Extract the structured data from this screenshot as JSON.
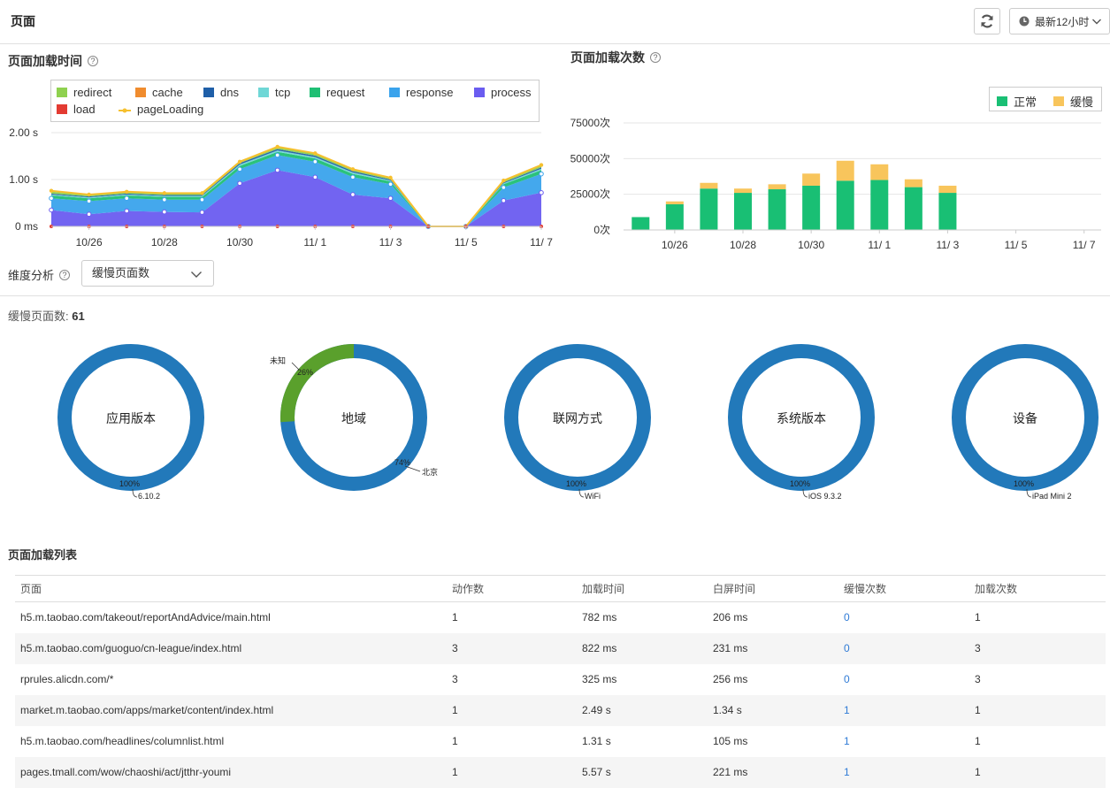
{
  "header": {
    "title": "页面",
    "time_range": "最新12小时"
  },
  "load_time": {
    "title": "页面加载时间",
    "legend": [
      {
        "name": "redirect",
        "color": "#8fd14f"
      },
      {
        "name": "cache",
        "color": "#f08c2e"
      },
      {
        "name": "dns",
        "color": "#1f5fa8"
      },
      {
        "name": "tcp",
        "color": "#6fd7d6"
      },
      {
        "name": "request",
        "color": "#1fbf74"
      },
      {
        "name": "response",
        "color": "#3aa3ec"
      },
      {
        "name": "process",
        "color": "#6a5cf0"
      },
      {
        "name": "load",
        "color": "#e33b32"
      },
      {
        "name": "pageLoading",
        "color": "#f6c02e"
      }
    ]
  },
  "load_count": {
    "title": "页面加载次数",
    "legend": [
      {
        "name": "正常",
        "color": "#19bf74"
      },
      {
        "name": "缓慢",
        "color": "#f8c55c"
      }
    ]
  },
  "dimension": {
    "label": "维度分析",
    "selected": "缓慢页面数"
  },
  "slow_pages": {
    "label": "缓慢页面数:",
    "count": "61"
  },
  "donuts": [
    {
      "center": "应用版本",
      "pct": "100%",
      "label": "6.10.2"
    },
    {
      "center": "地域",
      "pct": "74%",
      "label": "北京",
      "pct2": "26%",
      "label2": "未知"
    },
    {
      "center": "联网方式",
      "pct": "100%",
      "label": "WiFi"
    },
    {
      "center": "系统版本",
      "pct": "100%",
      "label": "iOS 9.3.2"
    },
    {
      "center": "设备",
      "pct": "100%",
      "label": "iPad Mini 2"
    }
  ],
  "page_list": {
    "title": "页面加载列表",
    "columns": [
      "页面",
      "动作数",
      "加载时间",
      "白屏时间",
      "缓慢次数",
      "加载次数"
    ],
    "rows": [
      [
        "h5.m.taobao.com/takeout/reportAndAdvice/main.html",
        "1",
        "782 ms",
        "206 ms",
        "0",
        "1"
      ],
      [
        "h5.m.taobao.com/guoguo/cn-league/index.html",
        "3",
        "822 ms",
        "231 ms",
        "0",
        "3"
      ],
      [
        "rprules.alicdn.com/*",
        "3",
        "325 ms",
        "256 ms",
        "0",
        "3"
      ],
      [
        "market.m.taobao.com/apps/market/content/index.html",
        "1",
        "2.49 s",
        "1.34 s",
        "1",
        "1"
      ],
      [
        "h5.m.taobao.com/headlines/columnlist.html",
        "1",
        "1.31 s",
        "105 ms",
        "1",
        "1"
      ],
      [
        "pages.tmall.com/wow/chaoshi/act/jtthr-youmi",
        "1",
        "5.57 s",
        "221 ms",
        "1",
        "1"
      ]
    ]
  },
  "chart_data": [
    {
      "type": "area",
      "title": "页面加载时间",
      "x": [
        "10/25",
        "10/26",
        "10/27",
        "10/28",
        "10/29",
        "10/30",
        "10/31",
        "11/ 1",
        "11/ 2",
        "11/ 3",
        "11/ 4",
        "11/ 5",
        "11/ 6",
        "11/ 7"
      ],
      "x_tick_labels": [
        "10/26",
        "10/28",
        "10/30",
        "11/ 1",
        "11/ 3",
        "11/ 5",
        "11/ 7"
      ],
      "y_tick_labels": [
        "2.00 s",
        "1.00 s",
        "0 ms"
      ],
      "ylim": [
        0,
        2.0
      ],
      "unit": "s",
      "series": [
        {
          "name": "process",
          "values": [
            0.35,
            0.26,
            0.33,
            0.31,
            0.3,
            0.92,
            1.2,
            1.05,
            0.68,
            0.6,
            0.0,
            0.0,
            0.55,
            0.72
          ]
        },
        {
          "name": "response",
          "values": [
            0.25,
            0.28,
            0.27,
            0.26,
            0.27,
            0.3,
            0.32,
            0.33,
            0.37,
            0.3,
            0.0,
            0.0,
            0.28,
            0.4
          ]
        },
        {
          "name": "request",
          "values": [
            0.06,
            0.06,
            0.06,
            0.06,
            0.06,
            0.07,
            0.07,
            0.07,
            0.07,
            0.06,
            0.0,
            0.0,
            0.07,
            0.08
          ]
        },
        {
          "name": "tcp",
          "values": [
            0.02,
            0.02,
            0.02,
            0.02,
            0.02,
            0.03,
            0.03,
            0.03,
            0.03,
            0.02,
            0.0,
            0.0,
            0.02,
            0.03
          ]
        },
        {
          "name": "dns",
          "values": [
            0.02,
            0.02,
            0.02,
            0.02,
            0.02,
            0.03,
            0.03,
            0.03,
            0.03,
            0.02,
            0.0,
            0.0,
            0.02,
            0.03
          ]
        },
        {
          "name": "cache",
          "values": [
            0.0,
            0.0,
            0.0,
            0.0,
            0.0,
            0.0,
            0.0,
            0.0,
            0.0,
            0.0,
            0.0,
            0.0,
            0.0,
            0.0
          ]
        },
        {
          "name": "redirect",
          "values": [
            0.04,
            0.04,
            0.04,
            0.04,
            0.04,
            0.05,
            0.05,
            0.05,
            0.04,
            0.04,
            0.0,
            0.0,
            0.04,
            0.05
          ]
        },
        {
          "name": "load",
          "values": [
            0,
            0,
            0,
            0,
            0,
            0,
            0,
            0,
            0,
            0,
            0,
            0,
            0,
            0
          ]
        },
        {
          "name": "pageLoading",
          "values": [
            0.76,
            0.68,
            0.74,
            0.71,
            0.71,
            1.38,
            1.7,
            1.56,
            1.22,
            1.04,
            0.0,
            0.0,
            0.98,
            1.31
          ]
        }
      ]
    },
    {
      "type": "bar",
      "title": "页面加载次数",
      "categories": [
        "10/25",
        "10/26",
        "10/27",
        "10/28",
        "10/29",
        "10/30",
        "10/31",
        "11/ 1",
        "11/ 2",
        "11/ 3",
        "11/ 4",
        "11/ 5",
        "11/ 6",
        "11/ 7"
      ],
      "x_tick_labels": [
        "10/26",
        "10/28",
        "10/30",
        "11/ 1",
        "11/ 3",
        "11/ 5",
        "11/ 7"
      ],
      "y_tick_labels": [
        "75000次",
        "50000次",
        "25000次",
        "0次"
      ],
      "ylim": [
        0,
        75000
      ],
      "series": [
        {
          "name": "正常",
          "values": [
            9000,
            18000,
            29000,
            26000,
            28500,
            31000,
            34500,
            35000,
            30000,
            26000,
            0,
            0,
            0,
            0
          ]
        },
        {
          "name": "缓慢",
          "values": [
            0,
            2000,
            4000,
            3000,
            3500,
            8500,
            14000,
            11000,
            5500,
            5000,
            0,
            0,
            0,
            0
          ]
        }
      ]
    }
  ]
}
